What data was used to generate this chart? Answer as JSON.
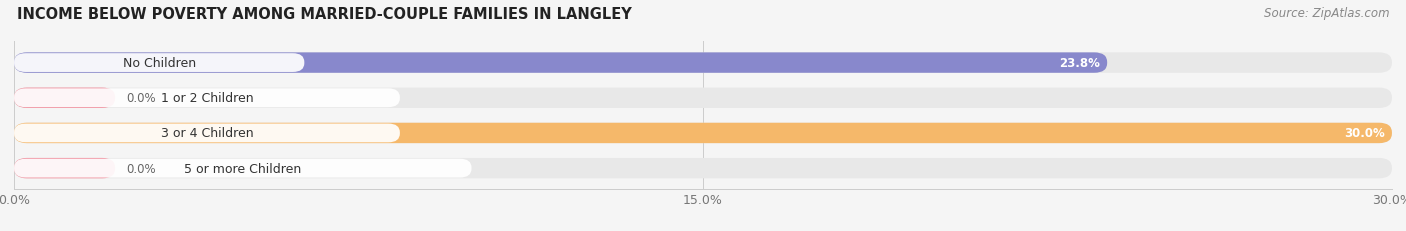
{
  "title": "INCOME BELOW POVERTY AMONG MARRIED-COUPLE FAMILIES IN LANGLEY",
  "source": "Source: ZipAtlas.com",
  "categories": [
    "No Children",
    "1 or 2 Children",
    "3 or 4 Children",
    "5 or more Children"
  ],
  "values": [
    23.8,
    0.0,
    30.0,
    0.0
  ],
  "bar_colors": [
    "#8888cc",
    "#f0909e",
    "#f5b86a",
    "#f0909e"
  ],
  "bar_bg_color": "#e8e8e8",
  "xlim": [
    0,
    30.0
  ],
  "xticks": [
    0.0,
    15.0,
    30.0
  ],
  "xticklabels": [
    "0.0%",
    "15.0%",
    "30.0%"
  ],
  "title_fontsize": 10.5,
  "source_fontsize": 8.5,
  "bar_label_fontsize": 8.5,
  "tick_fontsize": 9,
  "cat_fontsize": 9,
  "background_color": "#f5f5f5",
  "bar_height": 0.58,
  "pill_color": "#ffffff",
  "pill_alpha": 0.92
}
